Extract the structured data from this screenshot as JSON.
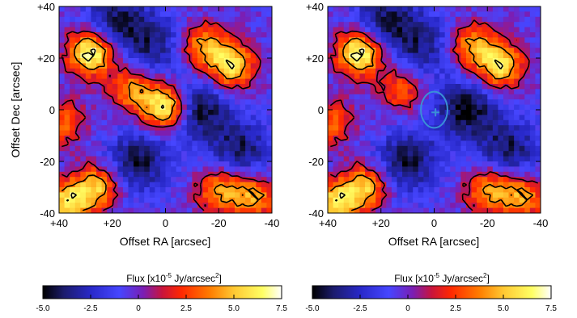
{
  "chart_data": [
    {
      "type": "heatmap",
      "panel": "left",
      "xlabel": "Offset RA [arcsec]",
      "ylabel": "Offset Dec [arcsec]",
      "xlim": [
        40,
        -40
      ],
      "ylim": [
        -40,
        40
      ],
      "x_ticks": [
        "+40",
        "+20",
        "0",
        "-20",
        "-40"
      ],
      "y_ticks": [
        "+40",
        "+20",
        "0",
        "-20",
        "-40"
      ],
      "contours": "black",
      "peaks": [
        {
          "x": 28,
          "y": 22,
          "v": 7.4
        },
        {
          "x": 0,
          "y": 1,
          "v": 7.5
        },
        {
          "x": -25,
          "y": 17,
          "v": 6.0
        },
        {
          "x": -15,
          "y": 25,
          "v": 4.5
        },
        {
          "x": 26,
          "y": -30,
          "v": 5.0
        },
        {
          "x": -20,
          "y": -31,
          "v": 4.2
        },
        {
          "x": 37,
          "y": -36,
          "v": 5.5
        },
        {
          "x": -33,
          "y": -34,
          "v": 4.5
        },
        {
          "x": 13,
          "y": 8,
          "v": 4.0
        },
        {
          "x": 38,
          "y": -5,
          "v": 3.0
        }
      ],
      "troughs": [
        {
          "x": -12,
          "y": 0,
          "v": -4.8
        },
        {
          "x": 10,
          "y": -20,
          "v": -4.5
        },
        {
          "x": -28,
          "y": -15,
          "v": -4.0
        },
        {
          "x": 18,
          "y": 35,
          "v": -4.0
        },
        {
          "x": 5,
          "y": 25,
          "v": -3.5
        }
      ],
      "markers": []
    },
    {
      "type": "heatmap",
      "panel": "right",
      "xlabel": "Offset RA [arcsec]",
      "ylabel": "",
      "xlim": [
        40,
        -40
      ],
      "ylim": [
        -40,
        40
      ],
      "x_ticks": [
        "+40",
        "+20",
        "0",
        "-20",
        "-40"
      ],
      "y_ticks": [
        "+40",
        "+20",
        "0",
        "-20",
        "-40"
      ],
      "contours": "black",
      "peaks": [
        {
          "x": 28,
          "y": 22,
          "v": 7.4
        },
        {
          "x": -25,
          "y": 17,
          "v": 6.0
        },
        {
          "x": -15,
          "y": 25,
          "v": 4.5
        },
        {
          "x": 26,
          "y": -30,
          "v": 5.0
        },
        {
          "x": -20,
          "y": -31,
          "v": 4.2
        },
        {
          "x": 37,
          "y": -36,
          "v": 5.5
        },
        {
          "x": -33,
          "y": -34,
          "v": 4.5
        },
        {
          "x": 13,
          "y": 8,
          "v": 3.0
        },
        {
          "x": 38,
          "y": -5,
          "v": 3.0
        }
      ],
      "troughs": [
        {
          "x": -12,
          "y": 0,
          "v": -4.8
        },
        {
          "x": 10,
          "y": -20,
          "v": -4.5
        },
        {
          "x": -28,
          "y": -15,
          "v": -4.0
        },
        {
          "x": 18,
          "y": 35,
          "v": -4.0
        },
        {
          "x": 5,
          "y": 25,
          "v": -3.5
        }
      ],
      "markers": [
        {
          "shape": "ellipse",
          "x": 0,
          "y": 0,
          "rx": 5,
          "ry": 7,
          "color": "#3a8fd6"
        },
        {
          "shape": "plus",
          "x": -0.5,
          "y": -1,
          "color": "#3a8fd6"
        }
      ]
    }
  ],
  "colorbar": {
    "label_main": "Flux [x10",
    "label_exp": "-5",
    "label_mid": " Jy/arcsec",
    "label_sq": "2",
    "label_end": "]",
    "ticks": [
      "-5.0",
      "-2.5",
      "0",
      "2.5",
      "5.0",
      "7.5"
    ],
    "range": [
      -5.0,
      7.5
    ],
    "colormap": [
      "#000000",
      "#1c1c6e",
      "#2828c8",
      "#4646ff",
      "#7a1eb4",
      "#c8143c",
      "#ff2800",
      "#ff7d00",
      "#ffc832",
      "#ffff64",
      "#ffffff"
    ]
  }
}
